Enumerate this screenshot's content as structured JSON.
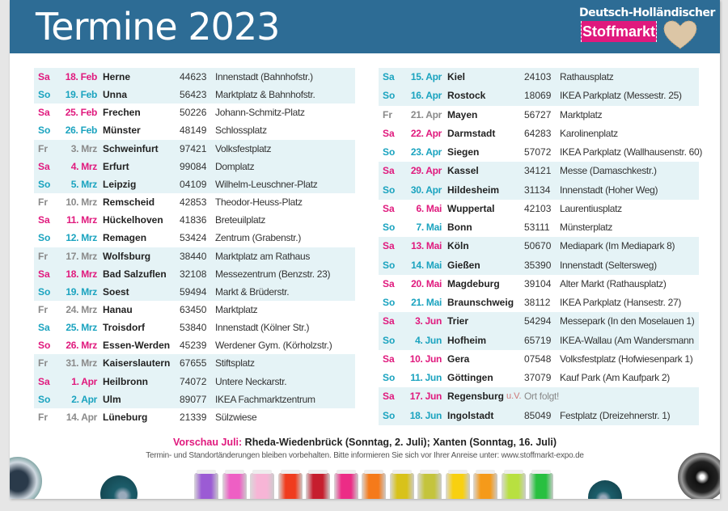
{
  "header": {
    "title": "Termine 2023",
    "logo_top": "Deutsch-Holländischer",
    "logo_name": "Stoffmarkt"
  },
  "colors": {
    "header": "#2d6c95",
    "magenta": "#e0197d",
    "cyan": "#1aa3bf",
    "gray": "#8a8a8a",
    "shade": "#e5f3f6"
  },
  "left": [
    {
      "day": "Sa",
      "date": "18. Feb",
      "city": "Herne",
      "zip": "44623",
      "place": "Innenstadt (Bahnhofstr.)",
      "color": "magenta",
      "shaded": true
    },
    {
      "day": "So",
      "date": "19. Feb",
      "city": "Unna",
      "zip": "56423",
      "place": "Marktplatz & Bahnhofstr.",
      "color": "cyan",
      "shaded": true
    },
    {
      "day": "Sa",
      "date": "25. Feb",
      "city": "Frechen",
      "zip": "50226",
      "place": "Johann-Schmitz-Platz",
      "color": "magenta",
      "shaded": false
    },
    {
      "day": "So",
      "date": "26. Feb",
      "city": "Münster",
      "zip": "48149",
      "place": "Schlossplatz",
      "color": "cyan",
      "shaded": false
    },
    {
      "day": "Fr",
      "date": "3. Mrz",
      "city": "Schweinfurt",
      "zip": "97421",
      "place": "Volksfestplatz",
      "color": "gray",
      "shaded": true
    },
    {
      "day": "Sa",
      "date": "4. Mrz",
      "city": "Erfurt",
      "zip": "99084",
      "place": "Domplatz",
      "color": "magenta",
      "shaded": true
    },
    {
      "day": "So",
      "date": "5. Mrz",
      "city": "Leipzig",
      "zip": "04109",
      "place": "Wilhelm-Leuschner-Platz",
      "color": "cyan",
      "shaded": true
    },
    {
      "day": "Fr",
      "date": "10. Mrz",
      "city": "Remscheid",
      "zip": "42853",
      "place": "Theodor-Heuss-Platz",
      "color": "gray",
      "shaded": false
    },
    {
      "day": "Sa",
      "date": "11. Mrz",
      "city": "Hückelhoven",
      "zip": "41836",
      "place": "Breteuilplatz",
      "color": "magenta",
      "shaded": false
    },
    {
      "day": "So",
      "date": "12. Mrz",
      "city": "Remagen",
      "zip": "53424",
      "place": "Zentrum (Grabenstr.)",
      "color": "cyan",
      "shaded": false
    },
    {
      "day": "Fr",
      "date": "17. Mrz",
      "city": "Wolfsburg",
      "zip": "38440",
      "place": "Marktplatz am Rathaus",
      "color": "gray",
      "shaded": true
    },
    {
      "day": "Sa",
      "date": "18. Mrz",
      "city": "Bad Salzuflen",
      "zip": "32108",
      "place": "Messezentrum (Benzstr. 23)",
      "color": "magenta",
      "shaded": true
    },
    {
      "day": "So",
      "date": "19. Mrz",
      "city": "Soest",
      "zip": "59494",
      "place": "Markt & Brüderstr.",
      "color": "cyan",
      "shaded": true
    },
    {
      "day": "Fr",
      "date": "24. Mrz",
      "city": "Hanau",
      "zip": "63450",
      "place": "Marktplatz",
      "color": "gray",
      "shaded": false
    },
    {
      "day": "Sa",
      "date": "25. Mrz",
      "city": "Troisdorf",
      "zip": "53840",
      "place": "Innenstadt (Kölner Str.)",
      "color": "cyan",
      "shaded": false
    },
    {
      "day": "So",
      "date": "26. Mrz",
      "city": "Essen-Werden",
      "zip": "45239",
      "place": "Werdener Gym. (Körholzstr.)",
      "color": "magenta",
      "shaded": false
    },
    {
      "day": "Fr",
      "date": "31. Mrz",
      "city": "Kaiserslautern",
      "zip": "67655",
      "place": "Stiftsplatz",
      "color": "gray",
      "shaded": true
    },
    {
      "day": "Sa",
      "date": "1. Apr",
      "city": "Heilbronn",
      "zip": "74072",
      "place": "Untere Neckarstr.",
      "color": "magenta",
      "shaded": true
    },
    {
      "day": "So",
      "date": "2. Apr",
      "city": "Ulm",
      "zip": "89077",
      "place": "IKEA Fachmarktzentrum",
      "color": "cyan",
      "shaded": true
    },
    {
      "day": "Fr",
      "date": "14. Apr",
      "city": "Lüneburg",
      "zip": "21339",
      "place": "Sülzwiese",
      "color": "gray",
      "shaded": false
    }
  ],
  "right": [
    {
      "day": "Sa",
      "date": "15. Apr",
      "city": "Kiel",
      "zip": "24103",
      "place": "Rathausplatz",
      "color": "cyan",
      "shaded": true
    },
    {
      "day": "So",
      "date": "16. Apr",
      "city": "Rostock",
      "zip": "18069",
      "place": "IKEA Parkplatz (Messestr. 25)",
      "color": "cyan",
      "shaded": true
    },
    {
      "day": "Fr",
      "date": "21. Apr",
      "city": "Mayen",
      "zip": "56727",
      "place": "Marktplatz",
      "color": "gray",
      "shaded": false
    },
    {
      "day": "Sa",
      "date": "22. Apr",
      "city": "Darmstadt",
      "zip": "64283",
      "place": "Karolinenplatz",
      "color": "magenta",
      "shaded": false
    },
    {
      "day": "So",
      "date": "23. Apr",
      "city": "Siegen",
      "zip": "57072",
      "place": "IKEA Parkplatz (Wallhausenstr. 60)",
      "color": "cyan",
      "shaded": false
    },
    {
      "day": "Sa",
      "date": "29. Apr",
      "city": "Kassel",
      "zip": "34121",
      "place": "Messe (Damaschkestr.)",
      "color": "magenta",
      "shaded": true
    },
    {
      "day": "So",
      "date": "30. Apr",
      "city": "Hildesheim",
      "zip": "31134",
      "place": "Innenstadt (Hoher Weg)",
      "color": "cyan",
      "shaded": true
    },
    {
      "day": "Sa",
      "date": "6. Mai",
      "city": "Wuppertal",
      "zip": "42103",
      "place": "Laurentiusplatz",
      "color": "magenta",
      "shaded": false
    },
    {
      "day": "So",
      "date": "7. Mai",
      "city": "Bonn",
      "zip": "53111",
      "place": "Münsterplatz",
      "color": "cyan",
      "shaded": false
    },
    {
      "day": "Sa",
      "date": "13. Mai",
      "city": "Köln",
      "zip": "50670",
      "place": "Mediapark (Im Mediapark 8)",
      "color": "magenta",
      "shaded": true
    },
    {
      "day": "So",
      "date": "14. Mai",
      "city": "Gießen",
      "zip": "35390",
      "place": "Innenstadt (Seltersweg)",
      "color": "cyan",
      "shaded": true
    },
    {
      "day": "Sa",
      "date": "20. Mai",
      "city": "Magdeburg",
      "zip": "39104",
      "place": "Alter Markt (Rathausplatz)",
      "color": "magenta",
      "shaded": false
    },
    {
      "day": "So",
      "date": "21. Mai",
      "city": "Braunschweig",
      "zip": "38112",
      "place": "IKEA Parkplatz (Hansestr. 27)",
      "color": "cyan",
      "shaded": false
    },
    {
      "day": "Sa",
      "date": "3. Jun",
      "city": "Trier",
      "zip": "54294",
      "place": "Messepark (In den Moselauen 1)",
      "color": "magenta",
      "shaded": true
    },
    {
      "day": "So",
      "date": "4. Jun",
      "city": "Hofheim",
      "zip": "65719",
      "place": "IKEA-Wallau (Am Wandersmann",
      "color": "cyan",
      "shaded": true
    },
    {
      "day": "Sa",
      "date": "10. Jun",
      "city": "Gera",
      "zip": "07548",
      "place": "Volksfestplatz (Hofwiesenpark 1)",
      "color": "magenta",
      "shaded": false
    },
    {
      "day": "So",
      "date": "11. Jun",
      "city": "Göttingen",
      "zip": "37079",
      "place": "Kauf Park (Am Kaufpark 2)",
      "color": "cyan",
      "shaded": false
    },
    {
      "day": "Sa",
      "date": "17. Jun",
      "city": "Regensburg",
      "note": "u.V.",
      "zip": "",
      "place": "Ort folgt!",
      "color": "magenta",
      "shaded": true
    },
    {
      "day": "So",
      "date": "18. Jun",
      "city": "Ingolstadt",
      "zip": "85049",
      "place": "Festplatz (Dreizehnerstr. 1)",
      "color": "cyan",
      "shaded": true
    }
  ],
  "footer": {
    "preview_label": "Vorschau Juli:",
    "preview_text": " Rheda-Wiedenbrück (Sonntag, 2. Juli); Xanten (Sonntag, 16. Juli)",
    "disclaimer": "Termin- und Standortänderungen bleiben vorbehalten. Bitte informieren Sie sich vor Ihrer Anreise unter: www.stoffmarkt-expo.de"
  },
  "spool_colors": [
    "#9b5bd4",
    "#ee5fc4",
    "#f7b5d6",
    "#f03c1e",
    "#c61e2e",
    "#ec2c86",
    "#f57a1a",
    "#d8c21a",
    "#c4c43c",
    "#f8d010",
    "#f59a1a",
    "#b8e040",
    "#28c040"
  ]
}
